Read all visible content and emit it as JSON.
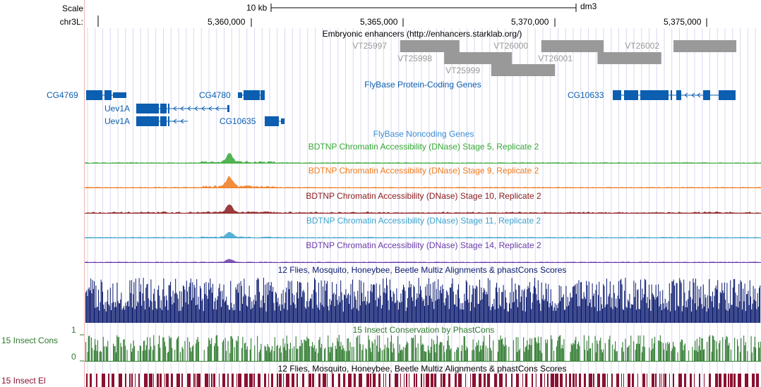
{
  "ruler": {
    "scale_label": "Scale",
    "chrom_label": "chr3L:",
    "scale_bar_label": "10 kb",
    "assembly": "dm3",
    "positions": [
      "5,360,000",
      "5,365,000",
      "5,370,000",
      "5,375,000"
    ]
  },
  "enhancers": {
    "title": "Embryonic enhancers (http://enhancers.starklab.org/)",
    "items": [
      {
        "name": "VT25997",
        "start": 5364900,
        "end": 5366850
      },
      {
        "name": "VT25998",
        "start": 5366350,
        "end": 5368580
      },
      {
        "name": "VT25999",
        "start": 5367900,
        "end": 5370000
      },
      {
        "name": "VT26000",
        "start": 5369550,
        "end": 5371600
      },
      {
        "name": "VT26001",
        "start": 5371400,
        "end": 5373500
      },
      {
        "name": "VT26002",
        "start": 5373900,
        "end": 5375970
      }
    ],
    "color": "#999999"
  },
  "protein_genes": {
    "title": "FlyBase Protein-Coding Genes",
    "labels": [
      "CG4769",
      "CG4780",
      "Uev1A",
      "Uev1A",
      "CG10635",
      "CG10633"
    ],
    "color": "#0b5eb0"
  },
  "noncoding": {
    "title": "FlyBase Noncoding Genes",
    "color": "#3a8fd6"
  },
  "dnase_tracks": [
    {
      "title": "BDTNP Chromatin Accessibility (DNase) Stage 5, Replicate 2",
      "color": "#35a835",
      "peak": 0.9
    },
    {
      "title": "BDTNP Chromatin Accessibility (DNase) Stage 9, Replicate 2",
      "color": "#f07a1c",
      "peak": 1.0
    },
    {
      "title": "BDTNP Chromatin Accessibility (DNase) Stage 10, Replicate 2",
      "color": "#8b1a1a",
      "peak": 0.75
    },
    {
      "title": "BDTNP Chromatin Accessibility (DNase) Stage 11, Replicate 2",
      "color": "#3aa3cc",
      "peak": 0.55
    },
    {
      "title": "BDTNP Chromatin Accessibility (DNase) Stage 14, Replicate 2",
      "color": "#6a3aa8",
      "peak": 0.3
    }
  ],
  "multiz": {
    "title": "12 Flies, Mosquito, Honeybee, Beetle Multiz Alignments & phastCons Scores",
    "color": "#0a1a6e"
  },
  "phastcons": {
    "side_label": "15 Insect Cons",
    "title": "15 Insect Conservation by PhastCons",
    "y_max": "1",
    "y_min": "0",
    "color": "#2f7a2f"
  },
  "elements": {
    "side_label": "15 Insect El",
    "title": "12 Flies, Mosquito, Honeybee, Beetle Multiz Alignments & phastCons Scores",
    "color": "#8b1030"
  },
  "colors": {
    "grid": "#d8d8f0",
    "left_border": "#f2b5b5",
    "text": "#000000"
  }
}
